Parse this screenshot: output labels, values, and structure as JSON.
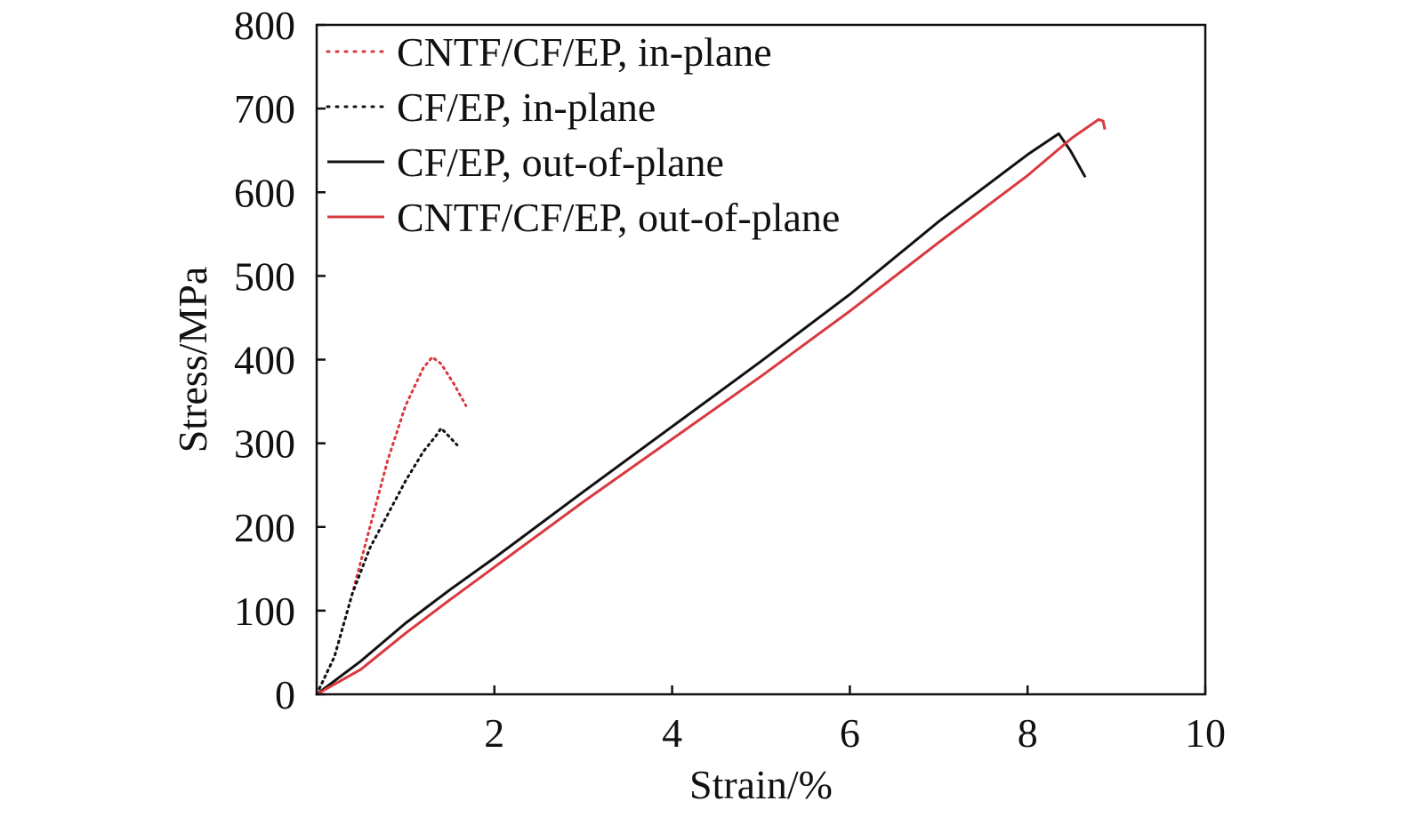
{
  "chart_data": {
    "type": "line",
    "title": "",
    "xlabel": "Strain/%",
    "ylabel": "Stress/MPa",
    "xlim": [
      0,
      10
    ],
    "ylim": [
      0,
      800
    ],
    "x_ticks": [
      {
        "value": 2,
        "label": "2"
      },
      {
        "value": 4,
        "label": "4"
      },
      {
        "value": 6,
        "label": "6"
      },
      {
        "value": 8,
        "label": "8"
      },
      {
        "value": 10,
        "label": "10"
      }
    ],
    "y_ticks": [
      {
        "value": 0,
        "label": "0"
      },
      {
        "value": 100,
        "label": "100"
      },
      {
        "value": 200,
        "label": "200"
      },
      {
        "value": 300,
        "label": "300"
      },
      {
        "value": 400,
        "label": "400"
      },
      {
        "value": 500,
        "label": "500"
      },
      {
        "value": 600,
        "label": "600"
      },
      {
        "value": 700,
        "label": "700"
      },
      {
        "value": 800,
        "label": "800"
      }
    ],
    "grid": false,
    "legend_position": "top-left",
    "series": [
      {
        "name": "CNTF/CF/EP, in-plane",
        "color": "#d9393e",
        "style": "dotted",
        "points": [
          [
            0,
            0
          ],
          [
            0.2,
            45
          ],
          [
            0.4,
            120
          ],
          [
            0.6,
            200
          ],
          [
            0.8,
            280
          ],
          [
            1.0,
            345
          ],
          [
            1.2,
            390
          ],
          [
            1.3,
            403
          ],
          [
            1.4,
            395
          ],
          [
            1.55,
            370
          ],
          [
            1.68,
            345
          ]
        ]
      },
      {
        "name": "CF/EP, in-plane",
        "color": "#111111",
        "style": "dotted",
        "points": [
          [
            0,
            0
          ],
          [
            0.2,
            45
          ],
          [
            0.4,
            120
          ],
          [
            0.6,
            175
          ],
          [
            0.8,
            215
          ],
          [
            1.0,
            255
          ],
          [
            1.2,
            290
          ],
          [
            1.35,
            310
          ],
          [
            1.4,
            318
          ],
          [
            1.5,
            307
          ],
          [
            1.58,
            298
          ]
        ]
      },
      {
        "name": "CF/EP, out-of-plane",
        "color": "#111111",
        "style": "solid",
        "points": [
          [
            0,
            0
          ],
          [
            0.5,
            40
          ],
          [
            1,
            85
          ],
          [
            1.5,
            125
          ],
          [
            2,
            163
          ],
          [
            3,
            242
          ],
          [
            4,
            320
          ],
          [
            5,
            398
          ],
          [
            6,
            478
          ],
          [
            7,
            565
          ],
          [
            8,
            645
          ],
          [
            8.35,
            670
          ],
          [
            8.48,
            650
          ],
          [
            8.65,
            618
          ]
        ]
      },
      {
        "name": "CNTF/CF/EP, out-of-plane",
        "color": "#d9393e",
        "style": "solid",
        "points": [
          [
            0,
            0
          ],
          [
            0.5,
            30
          ],
          [
            1,
            73
          ],
          [
            1.5,
            113
          ],
          [
            2,
            152
          ],
          [
            3,
            230
          ],
          [
            4,
            305
          ],
          [
            5,
            380
          ],
          [
            6,
            458
          ],
          [
            7,
            540
          ],
          [
            8,
            620
          ],
          [
            8.5,
            665
          ],
          [
            8.8,
            687
          ],
          [
            8.85,
            685
          ],
          [
            8.87,
            675
          ]
        ]
      }
    ]
  }
}
